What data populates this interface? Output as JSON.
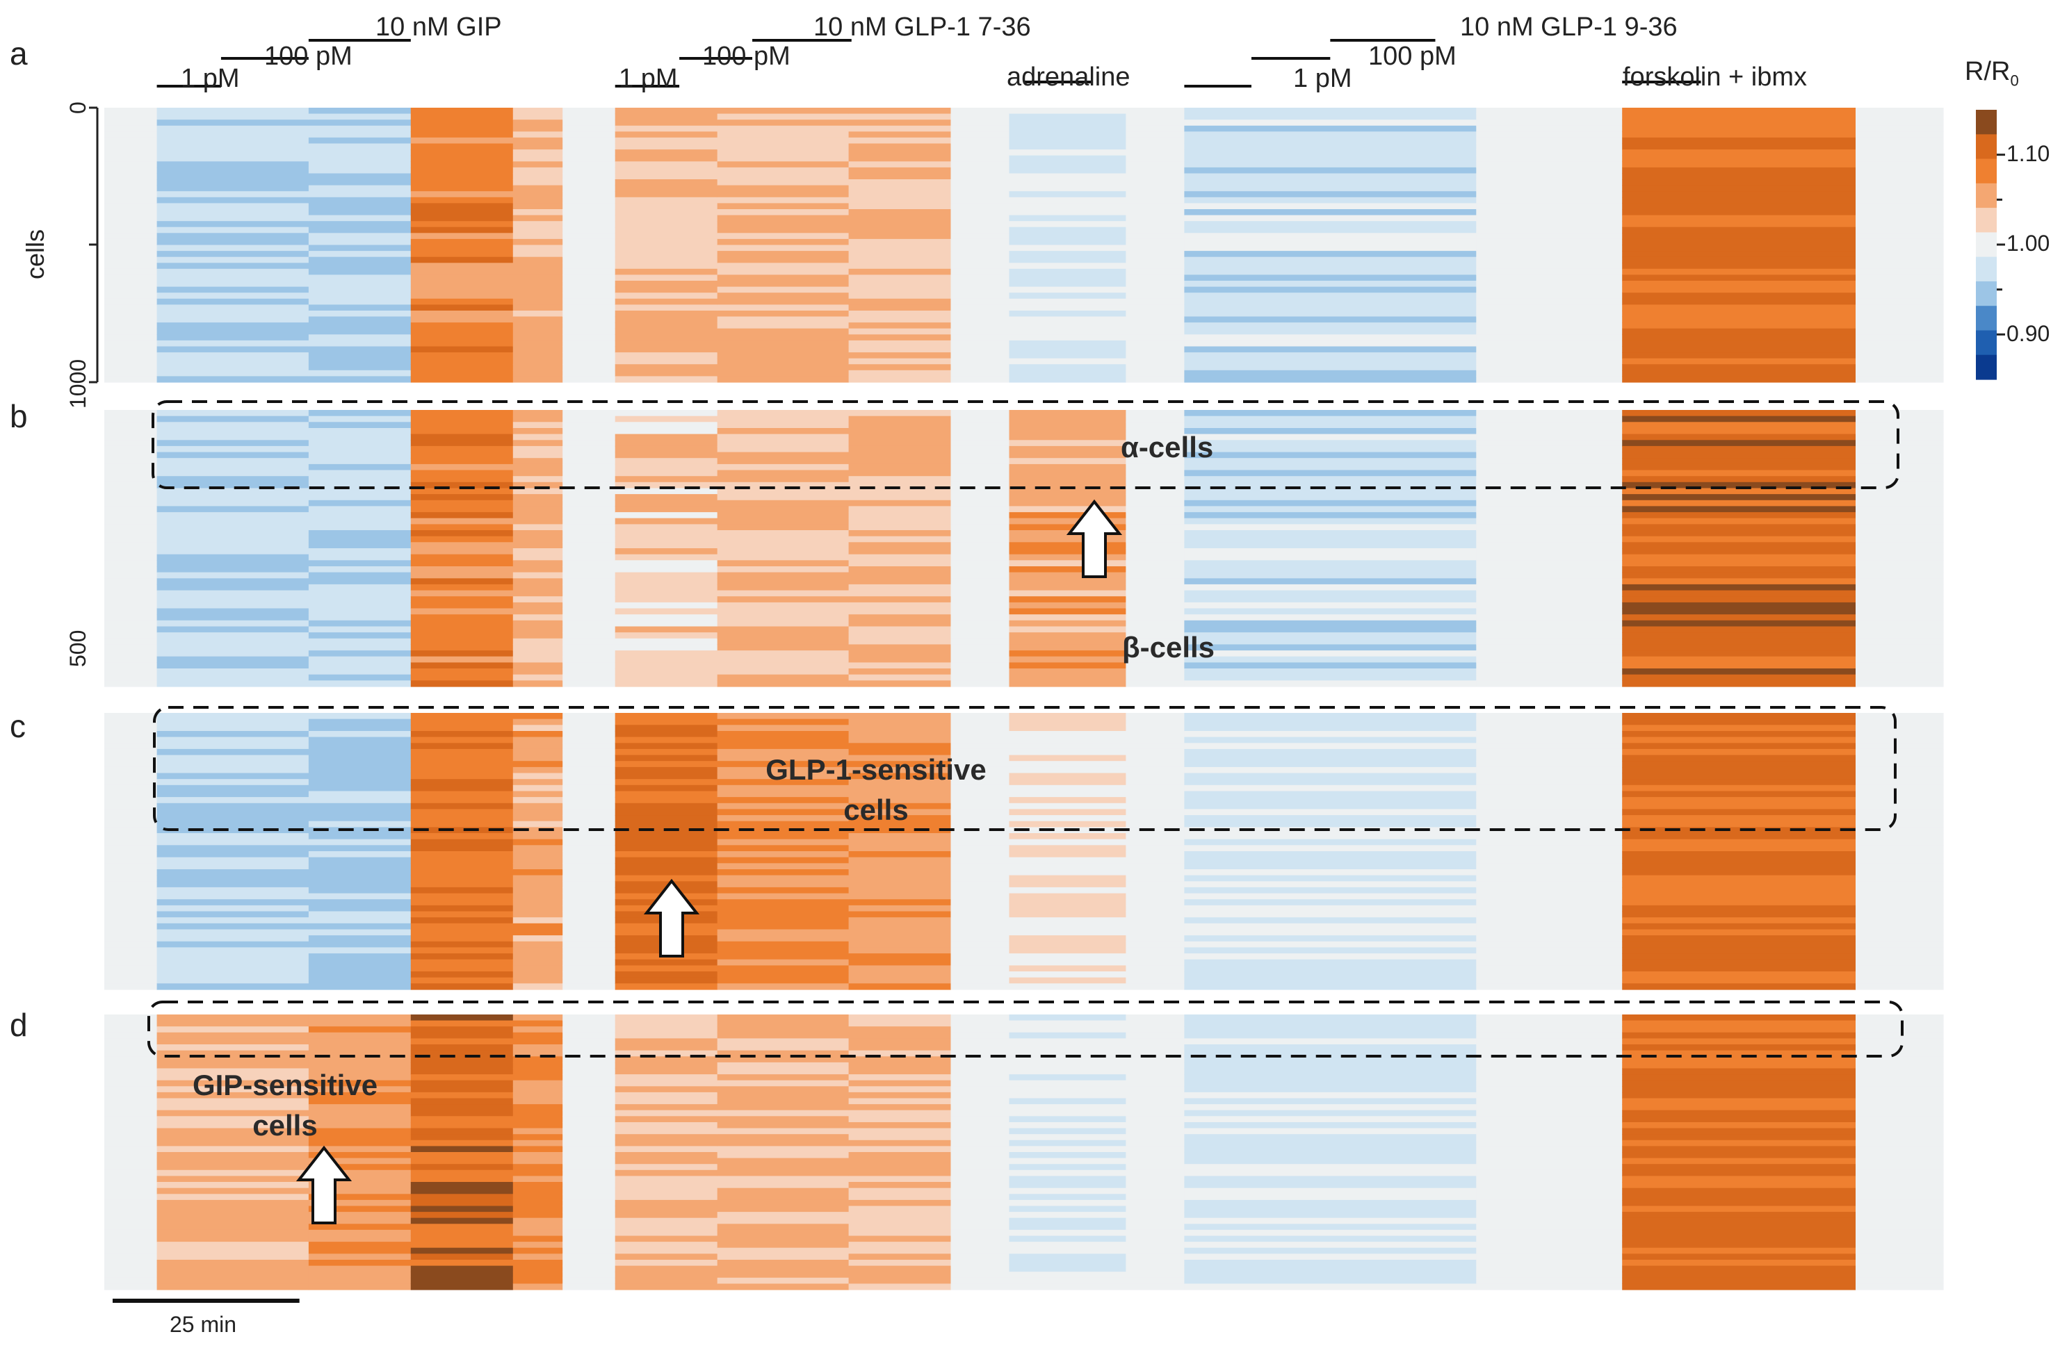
{
  "chart_data": {
    "type": "heatmap",
    "title": "",
    "panels": [
      {
        "letter": "a"
      },
      {
        "letter": "b",
        "annotations": {
          "upper": "α-cells",
          "lower": "β-cells"
        }
      },
      {
        "letter": "c",
        "annotations": {
          "upper_line1": "GLP-1-sensitive",
          "upper_line2": "cells"
        }
      },
      {
        "letter": "d",
        "annotations": {
          "upper_line1": "GIP-sensitive",
          "upper_line2": "cells"
        }
      }
    ],
    "ylabel": "cells",
    "yticks": [
      "0",
      "500",
      "1000"
    ],
    "ylim": [
      0,
      1000
    ],
    "treatments": {
      "gip": {
        "conc1": "1 pM",
        "conc2": "100 pM",
        "conc3": "10 nM GIP"
      },
      "glp1_7_36": {
        "conc1": "1 pM",
        "conc2": "100 pM",
        "conc3": "10 nM GLP-1 7-36"
      },
      "adrenaline": "adrenaline",
      "glp1_9_36": {
        "conc1": "1 pM",
        "conc2": "100 pM",
        "conc3": "10 nM GLP-1 9-36"
      },
      "forskolin": "forskolin + ibmx"
    },
    "colorbar": {
      "title_main": "R/R",
      "title_sub": "0",
      "ticks": [
        "1.10",
        "1.00",
        "0.90"
      ],
      "range": [
        0.85,
        1.15
      ],
      "colors": [
        "#0a3a8f",
        "#1f5fb0",
        "#4a88c8",
        "#9cc5e6",
        "#d0e4f2",
        "#eef1f2",
        "#f7d2bb",
        "#f4a772",
        "#ef8030",
        "#d9691d",
        "#8a4a1e"
      ]
    },
    "scale_bar": "25 min",
    "time_segments": [
      {
        "t": [
          0,
          18
        ],
        "a": 1.0,
        "b": 1.0,
        "c": 1.0,
        "d": 1.0
      },
      {
        "t": [
          18,
          70
        ],
        "a": 0.96,
        "b": 0.96,
        "c": 0.96,
        "d": 1.05
      },
      {
        "t": [
          70,
          105
        ],
        "a": 0.95,
        "b": 0.96,
        "c": 0.95,
        "d": 1.07
      },
      {
        "t": [
          105,
          140
        ],
        "a": 1.09,
        "b": 1.09,
        "c": 1.1,
        "d": 1.12
      },
      {
        "t": [
          140,
          157
        ],
        "a": 1.05,
        "b": 1.05,
        "c": 1.06,
        "d": 1.08
      },
      {
        "t": [
          157,
          175
        ],
        "a": 1.0,
        "b": 1.0,
        "c": 1.0,
        "d": 1.0
      },
      {
        "t": [
          175,
          210
        ],
        "a": 1.04,
        "b": 1.03,
        "c": 1.11,
        "d": 1.04
      },
      {
        "t": [
          210,
          255
        ],
        "a": 1.05,
        "b": 1.05,
        "c": 1.08,
        "d": 1.05
      },
      {
        "t": [
          255,
          290
        ],
        "a": 1.04,
        "b": 1.05,
        "c": 1.07,
        "d": 1.05
      },
      {
        "t": [
          290,
          310
        ],
        "a": 1.0,
        "b": 1.0,
        "c": 1.0,
        "d": 1.0
      },
      {
        "t": [
          310,
          350
        ],
        "a": 0.98,
        "b": 1.06,
        "c": 1.01,
        "d": 0.99
      },
      {
        "t": [
          350,
          370
        ],
        "a": 1.0,
        "b": 1.0,
        "c": 1.0,
        "d": 1.0
      },
      {
        "t": [
          370,
          470
        ],
        "a": 0.97,
        "b": 0.97,
        "c": 0.98,
        "d": 0.98
      },
      {
        "t": [
          470,
          520
        ],
        "a": 1.0,
        "b": 1.0,
        "c": 1.0,
        "d": 1.0
      },
      {
        "t": [
          520,
          600
        ],
        "a": 1.11,
        "b": 1.12,
        "c": 1.11,
        "d": 1.11
      },
      {
        "t": [
          600,
          630
        ],
        "a": 1.0,
        "b": 1.0,
        "c": 1.0,
        "d": 1.0
      }
    ]
  }
}
